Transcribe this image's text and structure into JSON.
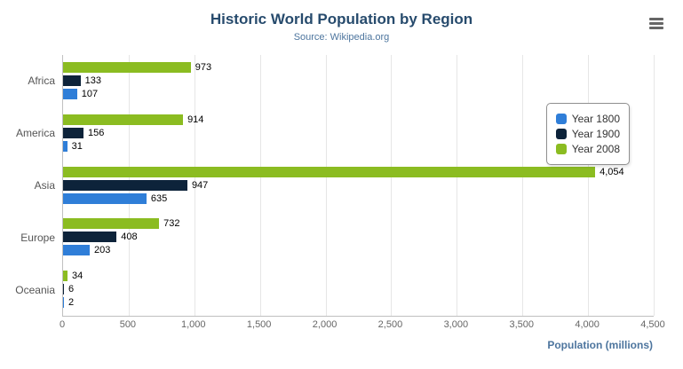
{
  "chart_data": {
    "type": "bar",
    "title": "Historic World Population by Region",
    "subtitle": "Source: Wikipedia.org",
    "xlabel": "Population (millions)",
    "xlim": [
      0,
      4500
    ],
    "xticks": [
      "0",
      "500",
      "1,000",
      "1,500",
      "2,000",
      "2,500",
      "3,000",
      "3,500",
      "4,000",
      "4,500"
    ],
    "grid": true,
    "legend_position": "right",
    "categories": [
      "Africa",
      "America",
      "Asia",
      "Europe",
      "Oceania"
    ],
    "series": [
      {
        "name": "Year 1800",
        "color": "#2f7ed8",
        "values": [
          107,
          31,
          635,
          203,
          2
        ],
        "labels": [
          "107",
          "31",
          "635",
          "203",
          "2"
        ]
      },
      {
        "name": "Year 1900",
        "color": "#0d233a",
        "values": [
          133,
          156,
          947,
          408,
          6
        ],
        "labels": [
          "133",
          "156",
          "947",
          "408",
          "6"
        ]
      },
      {
        "name": "Year 2008",
        "color": "#8bbc21",
        "values": [
          973,
          914,
          4054,
          732,
          34
        ],
        "labels": [
          "973",
          "914",
          "4,054",
          "732",
          "34"
        ]
      }
    ]
  },
  "menu_icon": "hamburger-menu-icon"
}
